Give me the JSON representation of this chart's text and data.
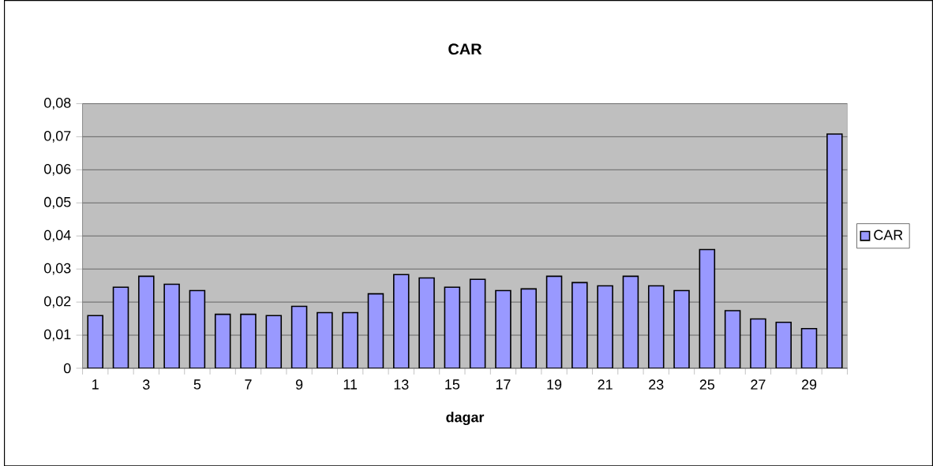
{
  "chart_data": {
    "type": "bar",
    "title": "CAR",
    "xlabel": "dagar",
    "categories": [
      "1",
      null,
      "3",
      null,
      "5",
      null,
      "7",
      null,
      "9",
      null,
      "11",
      null,
      "13",
      null,
      "15",
      null,
      "17",
      null,
      "19",
      null,
      "21",
      null,
      "23",
      null,
      "25",
      null,
      "27",
      null,
      "29",
      null
    ],
    "series": [
      {
        "name": "CAR",
        "color": "#9999ff",
        "values": [
          0.0159,
          0.0245,
          0.0278,
          0.0254,
          0.0235,
          0.0163,
          0.0163,
          0.0159,
          0.0187,
          0.0168,
          0.0168,
          0.0225,
          0.0283,
          0.0273,
          0.0245,
          0.0269,
          0.0235,
          0.024,
          0.0278,
          0.0259,
          0.0249,
          0.0278,
          0.0249,
          0.0235,
          0.0359,
          0.0174,
          0.0149,
          0.0139,
          0.012,
          0.0708
        ]
      }
    ],
    "ylim": [
      0,
      0.08
    ],
    "yticks": [
      0,
      {
        "value": 0.01,
        "label": "0,01"
      },
      {
        "value": 0.02,
        "label": "0,02"
      },
      {
        "value": 0.03,
        "label": "0,03"
      },
      {
        "value": 0.04,
        "label": "0,04"
      },
      {
        "value": 0.05,
        "label": "0,05"
      },
      {
        "value": 0.06,
        "label": "0,06"
      },
      {
        "value": 0.07,
        "label": "0,07"
      },
      {
        "value": 0.08,
        "label": "0,08"
      }
    ],
    "grid": "y",
    "legend": "right"
  }
}
